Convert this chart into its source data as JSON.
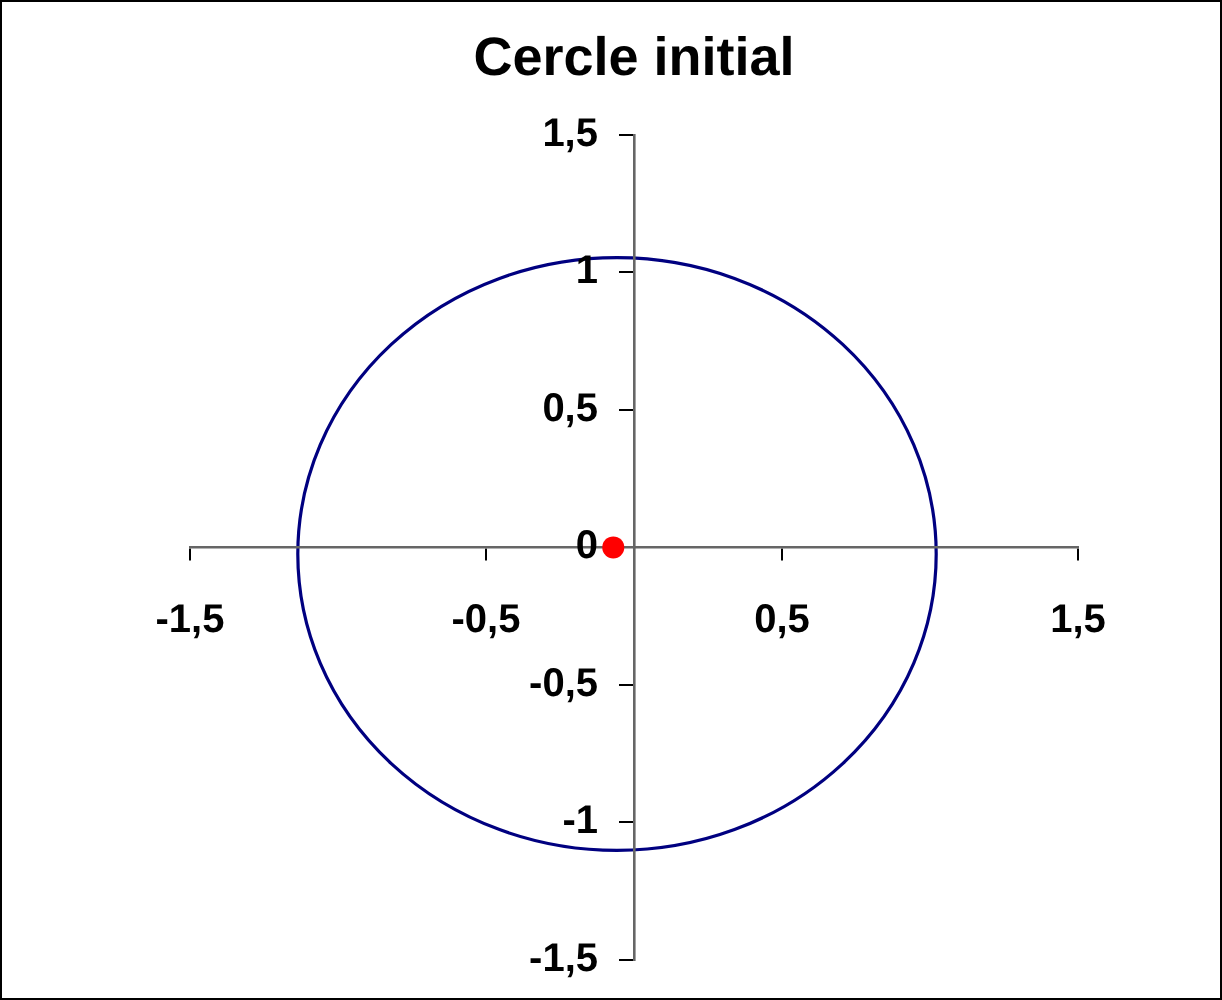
{
  "chart_data": {
    "type": "scatter",
    "title": "Cercle initial",
    "series": [
      {
        "color": "#ff0000",
        "marker": "circle",
        "x": [
          -0.07
        ],
        "values": [
          0
        ]
      }
    ],
    "xlim": [
      -1.5,
      1.5
    ],
    "ylim": [
      -1.5,
      1.5
    ],
    "xticks": [
      {
        "value": -1.5,
        "label": "-1,5"
      },
      {
        "value": -0.5,
        "label": "-0,5"
      },
      {
        "value": 0.5,
        "label": "0,5"
      },
      {
        "value": 1.5,
        "label": "1,5"
      }
    ],
    "yticks": [
      {
        "value": -1.5,
        "label": "-1,5"
      },
      -1,
      {
        "value": -0.5,
        "label": "-0,5"
      },
      0,
      {
        "value": 0.5,
        "label": "0,5"
      },
      1,
      {
        "value": 1.5,
        "label": "1,5"
      }
    ],
    "grid": false,
    "legend": false
  }
}
